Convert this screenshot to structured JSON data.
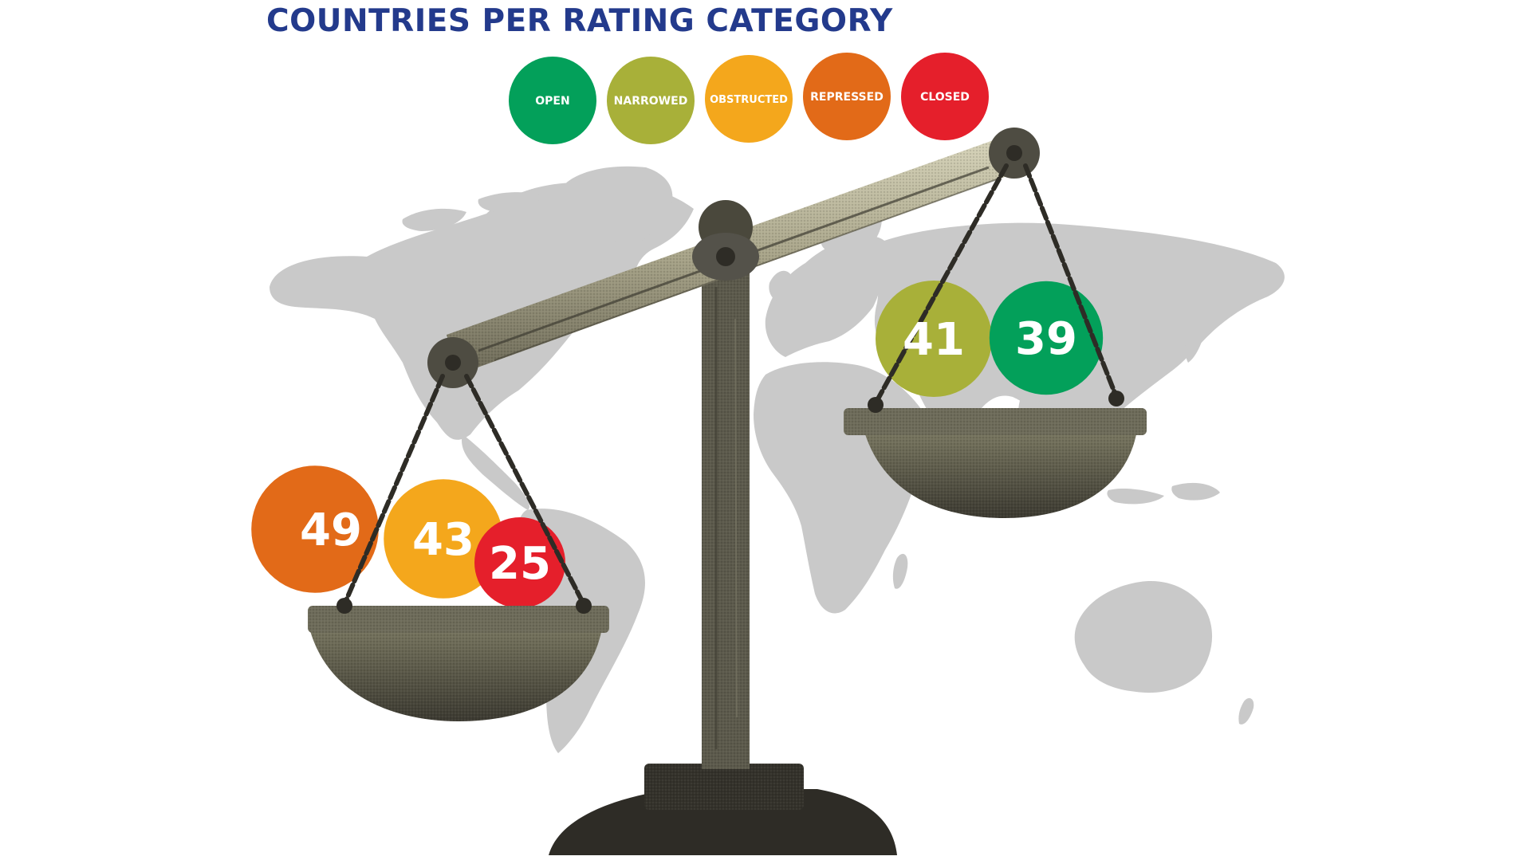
{
  "colors": {
    "title": "#233a8c",
    "open": "#03a05a",
    "narrowed": "#a8b039",
    "obstructed": "#f4a71c",
    "repressed": "#e26a18",
    "closed": "#e51f2b",
    "map": "#c9c9c9",
    "scale": "#5c5a4c",
    "scale_light": "#c5c2a9",
    "scale_dark": "#2e2c26"
  },
  "chart_data": {
    "type": "bubble",
    "title": "COUNTRIES PER RATING CATEGORY",
    "legend_placement": "top-center",
    "categories": [
      "OPEN",
      "NARROWED",
      "OBSTRUCTED",
      "REPRESSED",
      "CLOSED"
    ],
    "legend": [
      {
        "label": "OPEN",
        "color": "#03a05a"
      },
      {
        "label": "NARROWED",
        "color": "#a8b039"
      },
      {
        "label": "OBSTRUCTED",
        "color": "#f4a71c"
      },
      {
        "label": "REPRESSED",
        "color": "#e26a18"
      },
      {
        "label": "CLOSED",
        "color": "#e51f2b"
      }
    ],
    "series": [
      {
        "category": "OPEN",
        "value": 39,
        "pan": "right"
      },
      {
        "category": "NARROWED",
        "value": 41,
        "pan": "right"
      },
      {
        "category": "OBSTRUCTED",
        "value": 43,
        "pan": "left"
      },
      {
        "category": "REPRESSED",
        "value": 49,
        "pan": "left"
      },
      {
        "category": "CLOSED",
        "value": 25,
        "pan": "left"
      }
    ]
  }
}
